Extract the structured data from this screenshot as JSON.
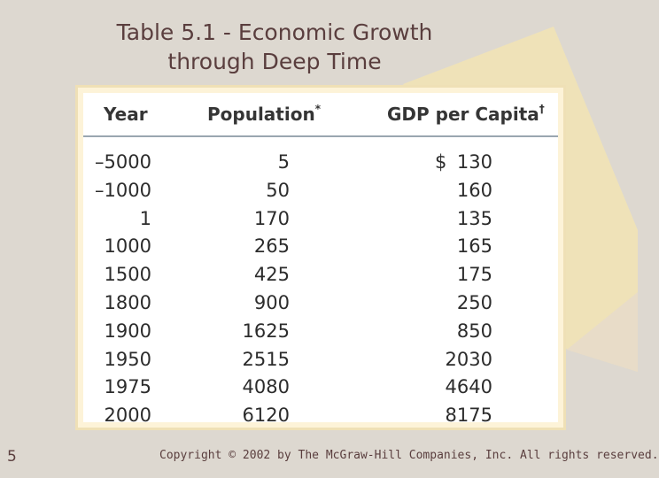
{
  "slide": {
    "title_line1": "Table 5.1 - Economic Growth",
    "title_line2": "through Deep Time",
    "page_number": "5",
    "copyright": "Copyright © 2002 by The McGraw-Hill Companies, Inc.  All rights reserved."
  },
  "table": {
    "headers": {
      "year": "Year",
      "population": "Population",
      "population_mark": "*",
      "gdp": "GDP per Capita",
      "gdp_mark": "†"
    },
    "currency_symbol": "$",
    "rows": [
      {
        "year": "–5000",
        "population": "5",
        "gdp": "130"
      },
      {
        "year": "–1000",
        "population": "50",
        "gdp": "160"
      },
      {
        "year": "1",
        "population": "170",
        "gdp": "135"
      },
      {
        "year": "1000",
        "population": "265",
        "gdp": "165"
      },
      {
        "year": "1500",
        "population": "425",
        "gdp": "175"
      },
      {
        "year": "1800",
        "population": "900",
        "gdp": "250"
      },
      {
        "year": "1900",
        "population": "1625",
        "gdp": "850"
      },
      {
        "year": "1950",
        "population": "2515",
        "gdp": "2030"
      },
      {
        "year": "1975",
        "population": "4080",
        "gdp": "4640"
      },
      {
        "year": "2000",
        "population": "6120",
        "gdp": "8175"
      }
    ]
  },
  "colors": {
    "background": "#ddd8d0",
    "accent_shape": "#efe2b8",
    "title_text": "#5a3e3e"
  }
}
